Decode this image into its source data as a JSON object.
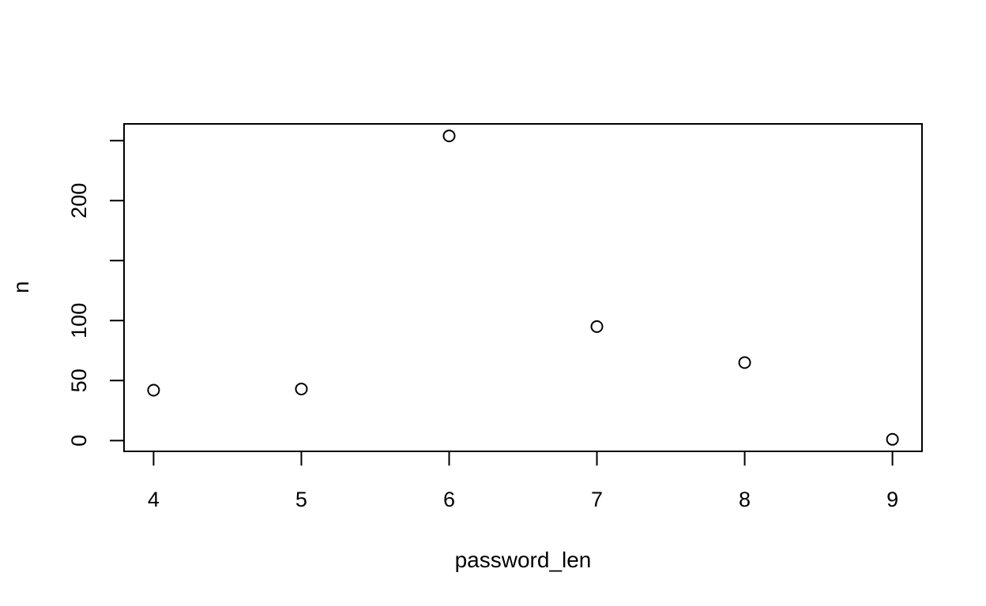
{
  "chart_data": {
    "type": "scatter",
    "title": "",
    "xlabel": "password_len",
    "ylabel": "n",
    "x": [
      4,
      5,
      6,
      7,
      8,
      9
    ],
    "y": [
      42,
      43,
      254,
      95,
      65,
      1
    ],
    "xlim": [
      3.8,
      9.2
    ],
    "ylim": [
      -9,
      264
    ],
    "x_ticks": [
      4,
      5,
      6,
      7,
      8,
      9
    ],
    "y_ticks": [
      0,
      50,
      100,
      150,
      200,
      250
    ],
    "y_tick_labels": [
      "0",
      "50",
      "100",
      "",
      "200",
      ""
    ],
    "grid": false,
    "marker": "open-circle",
    "colors": {
      "foreground": "#000000",
      "background": "#ffffff"
    }
  }
}
